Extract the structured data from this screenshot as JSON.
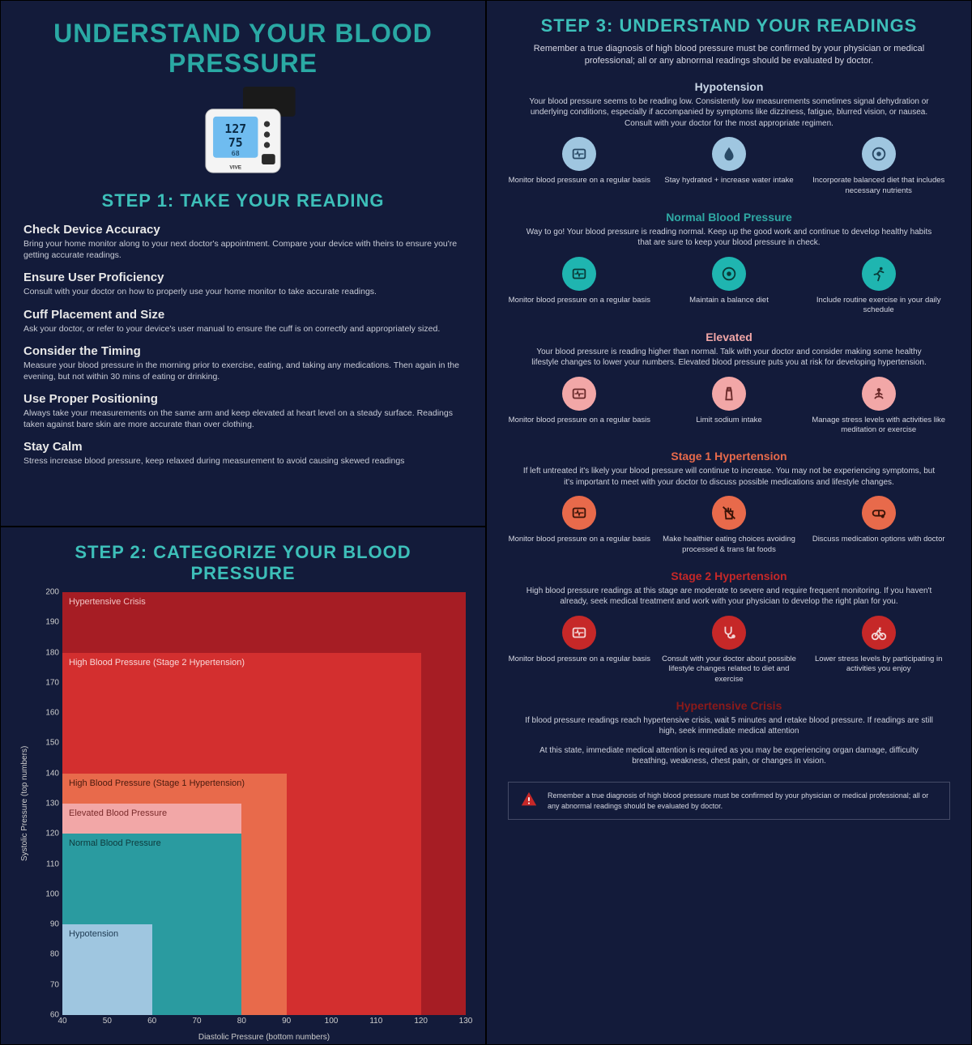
{
  "colors": {
    "background": "#131b3a",
    "title_teal": "#2aa9a4",
    "subtitle_teal": "#3dbfb9",
    "text_body": "#c8cbd6",
    "text_heading": "#e8e8e8"
  },
  "panel1": {
    "main_title": "UNDERSTAND YOUR BLOOD PRESSURE",
    "step_title": "STEP 1: TAKE YOUR READING",
    "step_title_color": "#3dbfb9",
    "tips": [
      {
        "h": "Check Device Accuracy",
        "p": "Bring your home monitor along to your next doctor's appointment. Compare your device with theirs to ensure you're getting accurate readings."
      },
      {
        "h": "Ensure User Proficiency",
        "p": "Consult with your doctor on how to properly use your home monitor to take accurate readings."
      },
      {
        "h": "Cuff Placement and Size",
        "p": "Ask your doctor, or refer to your device's user manual to ensure the cuff is on correctly and appropriately sized."
      },
      {
        "h": "Consider the Timing",
        "p": "Measure your blood pressure in the morning prior to exercise, eating, and taking any medications. Then again in the evening, but not within 30 mins of eating or drinking."
      },
      {
        "h": "Use Proper Positioning",
        "p": "Always take your measurements on the same arm and keep elevated at heart level on a steady surface. Readings taken against bare skin are more accurate than over clothing."
      },
      {
        "h": "Stay Calm",
        "p": "Stress increase blood pressure, keep relaxed during measurement to avoid causing skewed readings"
      }
    ]
  },
  "panel2": {
    "step_title": "STEP 2: CATEGORIZE YOUR BLOOD PRESSURE",
    "step_title_color": "#3dbfb9",
    "x_label": "Diastolic Pressure (bottom numbers)",
    "y_label": "Systolic Pressure (top numbers)",
    "x_range": [
      40,
      130
    ],
    "y_range": [
      60,
      200
    ],
    "x_ticks": [
      40,
      50,
      60,
      70,
      80,
      90,
      100,
      110,
      120,
      130
    ],
    "y_ticks": [
      60,
      70,
      80,
      90,
      100,
      110,
      120,
      130,
      140,
      150,
      160,
      170,
      180,
      190,
      200
    ],
    "zones": [
      {
        "label": "Hypertensive Crisis",
        "x_max": 130,
        "y_max": 200,
        "fill": "#a61d24",
        "text": "#f2c4c4"
      },
      {
        "label": "High Blood Pressure (Stage 2 Hypertension)",
        "x_max": 120,
        "y_max": 180,
        "fill": "#d32f2f",
        "text": "#f8d7d7"
      },
      {
        "label": "High Blood Pressure (Stage 1 Hypertension)",
        "x_max": 90,
        "y_max": 140,
        "fill": "#e86a4b",
        "text": "#4a1a0e"
      },
      {
        "label": "Elevated Blood Pressure",
        "x_max": 80,
        "y_max": 130,
        "fill": "#f2a7a7",
        "text": "#7a2b2b"
      },
      {
        "label": "Normal Blood Pressure",
        "x_max": 80,
        "y_max": 120,
        "fill": "#2a9ba0",
        "text": "#0e3a3c"
      },
      {
        "label": "Hypotension",
        "x_max": 60,
        "y_max": 90,
        "fill": "#9fc6e0",
        "text": "#1e3a52"
      }
    ]
  },
  "panel3": {
    "step_title": "STEP 3: UNDERSTAND YOUR READINGS",
    "step_title_color": "#3dbfb9",
    "intro": "Remember a true diagnosis of high blood pressure must be confirmed by your physician or medical professional; all or any abnormal readings should be evaluated by doctor.",
    "categories": [
      {
        "name": "Hypotension",
        "name_color": "#c9d6e6",
        "icon_bg": "#9fc6e0",
        "icon_fg": "#2a4a66",
        "desc": "Your blood pressure seems to be reading low. Consistently low measurements sometimes signal dehydration or underlying conditions, especially if accompanied by symptoms like dizziness, fatigue, blurred vision, or nausea. Consult with your doctor for the most appropriate regimen.",
        "items": [
          {
            "icon": "monitor",
            "text": "Monitor blood pressure on a regular basis"
          },
          {
            "icon": "drop",
            "text": "Stay hydrated + increase water intake"
          },
          {
            "icon": "food",
            "text": "Incorporate balanced diet that includes necessary nutrients"
          }
        ]
      },
      {
        "name": "Normal Blood Pressure",
        "name_color": "#2fa9a4",
        "icon_bg": "#1fb5b0",
        "icon_fg": "#0a3a38",
        "desc": "Way to go! Your blood pressure is reading normal. Keep up the good work and continue to develop healthy habits that are sure to keep your blood pressure in check.",
        "items": [
          {
            "icon": "monitor",
            "text": "Monitor blood pressure on a regular basis"
          },
          {
            "icon": "food",
            "text": "Maintain a balance diet"
          },
          {
            "icon": "run",
            "text": "Include routine exercise in your daily schedule"
          }
        ]
      },
      {
        "name": "Elevated",
        "name_color": "#f2a7a7",
        "icon_bg": "#f2a7a7",
        "icon_fg": "#6a2a2a",
        "desc": "Your blood pressure is reading higher than normal. Talk with your doctor and consider making some healthy lifestyle changes to lower your numbers. Elevated blood pressure puts you at risk for developing hypertension.",
        "items": [
          {
            "icon": "monitor",
            "text": "Monitor blood pressure on a regular basis"
          },
          {
            "icon": "salt",
            "text": "Limit sodium intake"
          },
          {
            "icon": "meditate",
            "text": "Manage stress levels with activities like meditation or exercise"
          }
        ]
      },
      {
        "name": "Stage 1 Hypertension",
        "name_color": "#e86a4b",
        "icon_bg": "#e86a4b",
        "icon_fg": "#3a1408",
        "desc": "If left untreated it's likely your blood pressure will continue to increase. You may not be experiencing symptoms, but it's important to meet with your doctor to discuss possible medications and lifestyle changes.",
        "items": [
          {
            "icon": "monitor",
            "text": "Monitor blood pressure on a regular basis"
          },
          {
            "icon": "nofries",
            "text": "Make healthier eating choices avoiding processed & trans fat foods"
          },
          {
            "icon": "pill",
            "text": "Discuss medication options with doctor"
          }
        ]
      },
      {
        "name": "Stage 2 Hypertension",
        "name_color": "#c62828",
        "icon_bg": "#c62828",
        "icon_fg": "#f2d6d6",
        "desc": "High blood pressure readings at this stage are moderate to severe and require frequent monitoring. If you haven't already, seek medical treatment and work with your physician to develop the right plan for you.",
        "items": [
          {
            "icon": "monitor",
            "text": "Monitor blood pressure on a regular basis"
          },
          {
            "icon": "steth",
            "text": "Consult with your doctor about possible lifestyle changes related to diet and exercise"
          },
          {
            "icon": "bike",
            "text": "Lower stress levels by participating in activities you enjoy"
          }
        ]
      },
      {
        "name": "Hypertensive Crisis",
        "name_color": "#8b1a1a",
        "icon_bg": null,
        "icon_fg": null,
        "desc": "If blood pressure readings reach hypertensive crisis, wait 5 minutes and retake blood pressure. If readings are still high, seek immediate medical attention",
        "desc2": "At this state, immediate medical attention is required as you may be experiencing organ damage, difficulty breathing, weakness, chest pain, or changes in vision.",
        "items": []
      }
    ],
    "warning_color": "#c62828",
    "warning_text": "Remember a true diagnosis of high blood pressure must be confirmed by your physician or medical professional; all or any abnormal readings should be evaluated by doctor."
  }
}
